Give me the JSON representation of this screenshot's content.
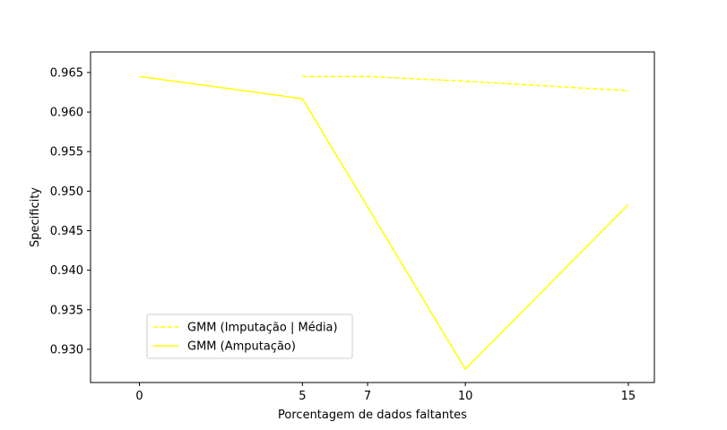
{
  "chart_data": {
    "type": "line",
    "title": "",
    "xlabel": "Porcentagem de dados faltantes",
    "ylabel": "Specificity",
    "xlim": [
      -1.5,
      15.8
    ],
    "ylim": [
      0.9258,
      0.9676
    ],
    "xticks": [
      0,
      5,
      7,
      10,
      15
    ],
    "xtick_labels": [
      "0",
      "5",
      "7",
      "10",
      "15"
    ],
    "yticks": [
      0.93,
      0.935,
      0.94,
      0.945,
      0.95,
      0.955,
      0.96,
      0.965
    ],
    "ytick_labels": [
      "0.930",
      "0.935",
      "0.940",
      "0.945",
      "0.950",
      "0.955",
      "0.960",
      "0.965"
    ],
    "grid": false,
    "legend_position": "lower-left",
    "series": [
      {
        "name": "GMM (Imputação | Média)",
        "style": "dashed",
        "color": "#ffff00",
        "x": [
          5,
          7,
          10,
          15
        ],
        "y": [
          0.9645,
          0.9645,
          0.9639,
          0.9627
        ]
      },
      {
        "name": "GMM (Amputação)",
        "style": "solid",
        "color": "#ffff00",
        "x": [
          0,
          5,
          10,
          15
        ],
        "y": [
          0.9645,
          0.9617,
          0.9275,
          0.9483
        ]
      }
    ]
  }
}
